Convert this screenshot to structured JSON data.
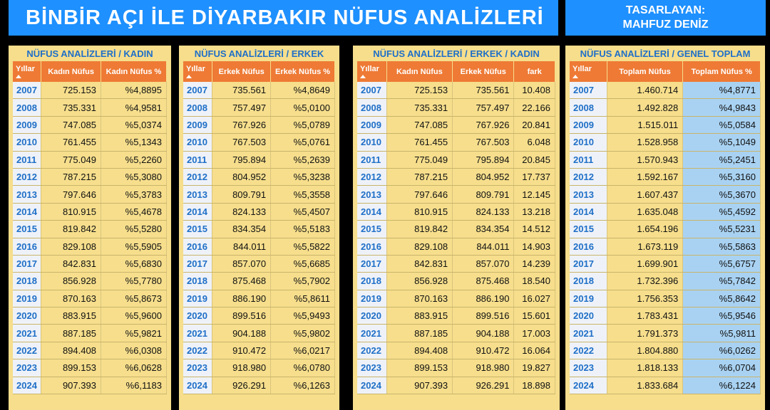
{
  "header": {
    "title": "BİNBİR AÇI İLE DİYARBAKIR NÜFUS ANALİZLERİ",
    "designer_label": "TASARLAYAN:",
    "designer_name": "MAHFUZ DENİZ"
  },
  "colors": {
    "banner": "#1e90ff",
    "panel": "#f6de8c",
    "header_row": "#ee7a35",
    "year_text": "#1f6fc8",
    "bar_fill": "#a9d2f2"
  },
  "panels": [
    {
      "title": "NÜFUS ANALİZLERİ / KADIN",
      "columns": [
        "Yıllar",
        "Kadın Nüfus",
        "Kadın Nüfus %"
      ],
      "rows": [
        [
          "2007",
          "725.153",
          "%4,8895"
        ],
        [
          "2008",
          "735.331",
          "%4,9581"
        ],
        [
          "2009",
          "747.085",
          "%5,0374"
        ],
        [
          "2010",
          "761.455",
          "%5,1343"
        ],
        [
          "2011",
          "775.049",
          "%5,2260"
        ],
        [
          "2012",
          "787.215",
          "%5,3080"
        ],
        [
          "2013",
          "797.646",
          "%5,3783"
        ],
        [
          "2014",
          "810.915",
          "%5,4678"
        ],
        [
          "2015",
          "819.842",
          "%5,5280"
        ],
        [
          "2016",
          "829.108",
          "%5,5905"
        ],
        [
          "2017",
          "842.831",
          "%5,6830"
        ],
        [
          "2018",
          "856.928",
          "%5,7780"
        ],
        [
          "2019",
          "870.163",
          "%5,8673"
        ],
        [
          "2020",
          "883.915",
          "%5,9600"
        ],
        [
          "2021",
          "887.185",
          "%5,9821"
        ],
        [
          "2022",
          "894.408",
          "%6,0308"
        ],
        [
          "2023",
          "899.153",
          "%6,0628"
        ],
        [
          "2024",
          "907.393",
          "%6,1183"
        ]
      ]
    },
    {
      "title": "NÜFUS ANALİZLERİ / ERKEK",
      "columns": [
        "Yıllar",
        "Erkek Nüfus",
        "Erkek Nüfus %"
      ],
      "rows": [
        [
          "2007",
          "735.561",
          "%4,8649"
        ],
        [
          "2008",
          "757.497",
          "%5,0100"
        ],
        [
          "2009",
          "767.926",
          "%5,0789"
        ],
        [
          "2010",
          "767.503",
          "%5,0761"
        ],
        [
          "2011",
          "795.894",
          "%5,2639"
        ],
        [
          "2012",
          "804.952",
          "%5,3238"
        ],
        [
          "2013",
          "809.791",
          "%5,3558"
        ],
        [
          "2014",
          "824.133",
          "%5,4507"
        ],
        [
          "2015",
          "834.354",
          "%5,5183"
        ],
        [
          "2016",
          "844.011",
          "%5,5822"
        ],
        [
          "2017",
          "857.070",
          "%5,6685"
        ],
        [
          "2018",
          "875.468",
          "%5,7902"
        ],
        [
          "2019",
          "886.190",
          "%5,8611"
        ],
        [
          "2020",
          "899.516",
          "%5,9493"
        ],
        [
          "2021",
          "904.188",
          "%5,9802"
        ],
        [
          "2022",
          "910.472",
          "%6,0217"
        ],
        [
          "2023",
          "918.980",
          "%6,0780"
        ],
        [
          "2024",
          "926.291",
          "%6,1263"
        ]
      ]
    },
    {
      "title": "NÜFUS ANALİZLERİ / ERKEK / KADIN",
      "columns": [
        "Yıllar",
        "Kadın Nüfus",
        "Erkek Nüfus",
        "fark"
      ],
      "rows": [
        [
          "2007",
          "725.153",
          "735.561",
          "10.408"
        ],
        [
          "2008",
          "735.331",
          "757.497",
          "22.166"
        ],
        [
          "2009",
          "747.085",
          "767.926",
          "20.841"
        ],
        [
          "2010",
          "761.455",
          "767.503",
          "6.048"
        ],
        [
          "2011",
          "775.049",
          "795.894",
          "20.845"
        ],
        [
          "2012",
          "787.215",
          "804.952",
          "17.737"
        ],
        [
          "2013",
          "797.646",
          "809.791",
          "12.145"
        ],
        [
          "2014",
          "810.915",
          "824.133",
          "13.218"
        ],
        [
          "2015",
          "819.842",
          "834.354",
          "14.512"
        ],
        [
          "2016",
          "829.108",
          "844.011",
          "14.903"
        ],
        [
          "2017",
          "842.831",
          "857.070",
          "14.239"
        ],
        [
          "2018",
          "856.928",
          "875.468",
          "18.540"
        ],
        [
          "2019",
          "870.163",
          "886.190",
          "16.027"
        ],
        [
          "2020",
          "883.915",
          "899.516",
          "15.601"
        ],
        [
          "2021",
          "887.185",
          "904.188",
          "17.003"
        ],
        [
          "2022",
          "894.408",
          "910.472",
          "16.064"
        ],
        [
          "2023",
          "899.153",
          "918.980",
          "19.827"
        ],
        [
          "2024",
          "907.393",
          "926.291",
          "18.898"
        ]
      ]
    },
    {
      "title": "NÜFUS ANALİZLERİ / GENEL TOPLAM",
      "columns": [
        "Yıllar",
        "Toplam Nüfus",
        "Toplam Nüfus %"
      ],
      "rows": [
        [
          "2007",
          "1.460.714",
          "%4,8771"
        ],
        [
          "2008",
          "1.492.828",
          "%4,9843"
        ],
        [
          "2009",
          "1.515.011",
          "%5,0584"
        ],
        [
          "2010",
          "1.528.958",
          "%5,1049"
        ],
        [
          "2011",
          "1.570.943",
          "%5,2451"
        ],
        [
          "2012",
          "1.592.167",
          "%5,3160"
        ],
        [
          "2013",
          "1.607.437",
          "%5,3670"
        ],
        [
          "2014",
          "1.635.048",
          "%5,4592"
        ],
        [
          "2015",
          "1.654.196",
          "%5,5231"
        ],
        [
          "2016",
          "1.673.119",
          "%5,5863"
        ],
        [
          "2017",
          "1.699.901",
          "%5,6757"
        ],
        [
          "2018",
          "1.732.396",
          "%5,7842"
        ],
        [
          "2019",
          "1.756.353",
          "%5,8642"
        ],
        [
          "2020",
          "1.783.431",
          "%5,9546"
        ],
        [
          "2021",
          "1.791.373",
          "%5,9811"
        ],
        [
          "2022",
          "1.804.880",
          "%6,0262"
        ],
        [
          "2023",
          "1.818.133",
          "%6,0704"
        ],
        [
          "2024",
          "1.833.684",
          "%6,1224"
        ]
      ]
    }
  ]
}
